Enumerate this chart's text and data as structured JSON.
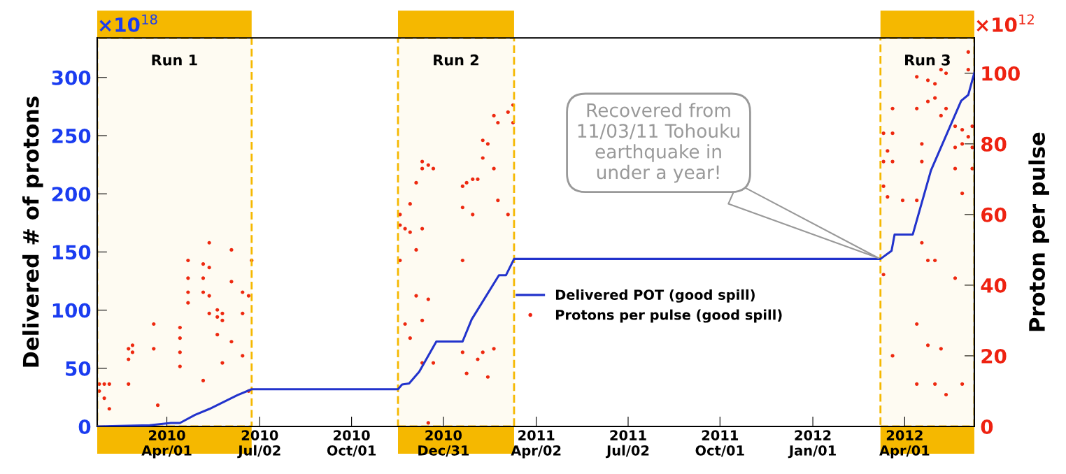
{
  "chart_data": {
    "type": "line",
    "ylabel": "Delivered # of protons",
    "y2label": "Proton per pulse",
    "xlim": [
      "2010-01-22",
      "2012-06-09"
    ],
    "xticks": [
      {
        "value": "2010-04-01",
        "label": "2010\nApr/01"
      },
      {
        "value": "2010-07-02",
        "label": "2010\nJul/02"
      },
      {
        "value": "2010-10-01",
        "label": "2010\nOct/01"
      },
      {
        "value": "2010-12-31",
        "label": "2010\nDec/31"
      },
      {
        "value": "2011-04-02",
        "label": "2011\nApr/02"
      },
      {
        "value": "2011-07-02",
        "label": "2011\nJul/02"
      },
      {
        "value": "2011-10-01",
        "label": "2011\nOct/01"
      },
      {
        "value": "2012-01-01",
        "label": "2012\nJan/01"
      },
      {
        "value": "2012-04-01",
        "label": "2012\nApr/01"
      }
    ],
    "ylim": [
      0,
      334
    ],
    "yticks": [
      0,
      50,
      100,
      150,
      200,
      250,
      300
    ],
    "y2lim": [
      0,
      110
    ],
    "y2ticks": [
      0,
      20,
      40,
      60,
      80,
      100
    ],
    "grid": false,
    "legend": "center",
    "series": [
      {
        "name": "Delivered POT (good spill)",
        "color": "#2233cc",
        "marker": "none",
        "line_style": "solid",
        "x": [
          "2010-01-22",
          "2010-03-15",
          "2010-04-05",
          "2010-04-14",
          "2010-04-29",
          "2010-05-13",
          "2010-05-27",
          "2010-06-10",
          "2010-06-24",
          "2010-11-16",
          "2010-11-20",
          "2010-11-27",
          "2010-12-07",
          "2010-12-24",
          "2011-01-19",
          "2011-01-28",
          "2011-02-24",
          "2011-03-03",
          "2011-03-11",
          "2012-03-08",
          "2012-03-19",
          "2012-03-22",
          "2012-04-09",
          "2012-04-27",
          "2012-05-27",
          "2012-06-03",
          "2012-06-09"
        ],
        "values": [
          0,
          1,
          3,
          3,
          10,
          15,
          21,
          27,
          32,
          32,
          36,
          37,
          47,
          73,
          73,
          92,
          130,
          130,
          144,
          144,
          151,
          165,
          165,
          220,
          280,
          285,
          304
        ]
      },
      {
        "name": "Protons per pulse (good spill)",
        "type": "scatter",
        "axis": "y2",
        "color": "#ee2211",
        "marker": "circle",
        "x": [
          "2010-01-24",
          "2010-01-24",
          "2010-01-29",
          "2010-01-29",
          "2010-02-03",
          "2010-02-03",
          "2010-02-22",
          "2010-02-22",
          "2010-02-22",
          "2010-02-26",
          "2010-02-26",
          "2010-03-19",
          "2010-03-19",
          "2010-03-23",
          "2010-04-14",
          "2010-04-14",
          "2010-04-14",
          "2010-04-14",
          "2010-04-22",
          "2010-04-22",
          "2010-04-22",
          "2010-04-22",
          "2010-05-07",
          "2010-05-07",
          "2010-05-07",
          "2010-05-07",
          "2010-05-13",
          "2010-05-13",
          "2010-05-13",
          "2010-05-13",
          "2010-05-21",
          "2010-05-21",
          "2010-05-21",
          "2010-05-26",
          "2010-05-26",
          "2010-05-26",
          "2010-06-04",
          "2010-06-04",
          "2010-06-04",
          "2010-06-15",
          "2010-06-15",
          "2010-06-15",
          "2010-06-21",
          "2010-06-21",
          "2010-06-24",
          "2010-11-18",
          "2010-11-18",
          "2010-11-18",
          "2010-11-23",
          "2010-11-23",
          "2010-11-28",
          "2010-11-28",
          "2010-11-28",
          "2010-12-04",
          "2010-12-04",
          "2010-12-04",
          "2010-12-10",
          "2010-12-10",
          "2010-12-10",
          "2010-12-10",
          "2010-12-10",
          "2010-12-16",
          "2010-12-16",
          "2010-12-16",
          "2010-12-21",
          "2010-12-21",
          "2011-01-19",
          "2011-01-19",
          "2011-01-19",
          "2011-01-19",
          "2011-01-23",
          "2011-01-23",
          "2011-01-29",
          "2011-01-29",
          "2011-02-03",
          "2011-02-03",
          "2011-02-08",
          "2011-02-08",
          "2011-02-08",
          "2011-02-13",
          "2011-02-13",
          "2011-02-19",
          "2011-02-19",
          "2011-02-19",
          "2011-02-23",
          "2011-02-23",
          "2011-03-05",
          "2011-03-05",
          "2011-03-10",
          "2011-03-10",
          "2012-03-11",
          "2012-03-11",
          "2012-03-11",
          "2012-03-11",
          "2012-03-15",
          "2012-03-15",
          "2012-03-20",
          "2012-03-20",
          "2012-03-20",
          "2012-03-20",
          "2012-03-30",
          "2012-04-13",
          "2012-04-13",
          "2012-04-13",
          "2012-04-13",
          "2012-04-13",
          "2012-04-18",
          "2012-04-18",
          "2012-04-18",
          "2012-04-24",
          "2012-04-24",
          "2012-04-24",
          "2012-04-24",
          "2012-05-01",
          "2012-05-01",
          "2012-05-01",
          "2012-05-01",
          "2012-05-07",
          "2012-05-07",
          "2012-05-07",
          "2012-05-12",
          "2012-05-12",
          "2012-05-12",
          "2012-05-21",
          "2012-05-21",
          "2012-05-21",
          "2012-05-21",
          "2012-05-28",
          "2012-05-28",
          "2012-05-28",
          "2012-05-28",
          "2012-06-03",
          "2012-06-03",
          "2012-06-03",
          "2012-06-07",
          "2012-06-07",
          "2012-06-07"
        ],
        "values": [
          12,
          10,
          12,
          8,
          12,
          5,
          19,
          22,
          12,
          21,
          23,
          22,
          29,
          6,
          28,
          25,
          21,
          17,
          47,
          42,
          38,
          35,
          46,
          42,
          38,
          13,
          52,
          45,
          37,
          32,
          33,
          31,
          26,
          32,
          30,
          18,
          50,
          41,
          24,
          38,
          32,
          20,
          37,
          10,
          47,
          60,
          57,
          47,
          29,
          56,
          63,
          55,
          25,
          69,
          50,
          37,
          75,
          73,
          56,
          30,
          18,
          74,
          36,
          1,
          73,
          18,
          68,
          62,
          47,
          21,
          69,
          15,
          70,
          60,
          70,
          19,
          81,
          76,
          21,
          80,
          14,
          88,
          73,
          22,
          86,
          64,
          89,
          60,
          91,
          86,
          83,
          75,
          68,
          43,
          78,
          65,
          90,
          83,
          75,
          20,
          64,
          99,
          90,
          64,
          29,
          12,
          75,
          52,
          80,
          98,
          92,
          47,
          23,
          97,
          93,
          47,
          12,
          101,
          88,
          22,
          100,
          90,
          9,
          85,
          79,
          73,
          42,
          84,
          80,
          66,
          12,
          106,
          101,
          82,
          85,
          79,
          73
        ]
      }
    ],
    "bands": [
      {
        "axis": "x",
        "from": "2010-01-22",
        "to": "2010-06-24",
        "label": "Run 1",
        "color": "#f5b800"
      },
      {
        "axis": "x",
        "from": "2010-11-16",
        "to": "2011-03-11",
        "label": "Run 2",
        "color": "#f5b800"
      },
      {
        "axis": "x",
        "from": "2012-03-08",
        "to": "2012-06-09",
        "label": "Run 3",
        "color": "#f5b800"
      }
    ],
    "annotations": [
      "×10$^{18}$",
      "×10$^{12}$",
      {
        "text": "Recovered from\n11/03/11 Tohouku\nearthquake in\nunder a year!",
        "x": "2012-03-08",
        "y": 144
      }
    ]
  }
}
